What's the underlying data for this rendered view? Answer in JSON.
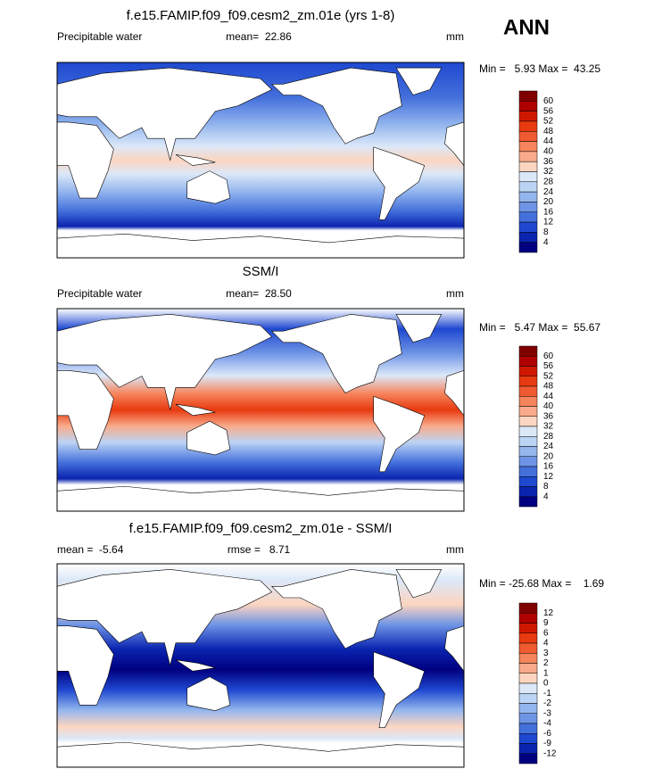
{
  "season": "ANN",
  "panels": [
    {
      "title": "f.e15.FAMIP.f09_f09.cesm2_zm.01e (yrs 1-8)",
      "left_label": "Precipitable water",
      "center_label": "mean=  22.86",
      "units": "mm",
      "range": "Min =   5.93 Max =  43.25",
      "colorbar": [
        "60",
        "56",
        "52",
        "48",
        "44",
        "40",
        "36",
        "32",
        "28",
        "24",
        "20",
        "16",
        "12",
        "8",
        "4"
      ]
    },
    {
      "title": "SSM/I",
      "left_label": "Precipitable water",
      "center_label": "mean=  28.50",
      "units": "mm",
      "range": "Min =   5.47 Max =  55.67",
      "colorbar": [
        "60",
        "56",
        "52",
        "48",
        "44",
        "40",
        "36",
        "32",
        "28",
        "24",
        "20",
        "16",
        "12",
        "8",
        "4"
      ]
    },
    {
      "title": "f.e15.FAMIP.f09_f09.cesm2_zm.01e - SSM/I",
      "left_label": "mean =  -5.64",
      "center_label": "rmse =   8.71",
      "units": "mm",
      "range": "Min = -25.68 Max =    1.69",
      "colorbar": [
        "12",
        "9",
        "6",
        "4",
        "3",
        "2",
        "1",
        "0",
        "-1",
        "-2",
        "-3",
        "-4",
        "-6",
        "-9",
        "-12"
      ]
    }
  ]
}
